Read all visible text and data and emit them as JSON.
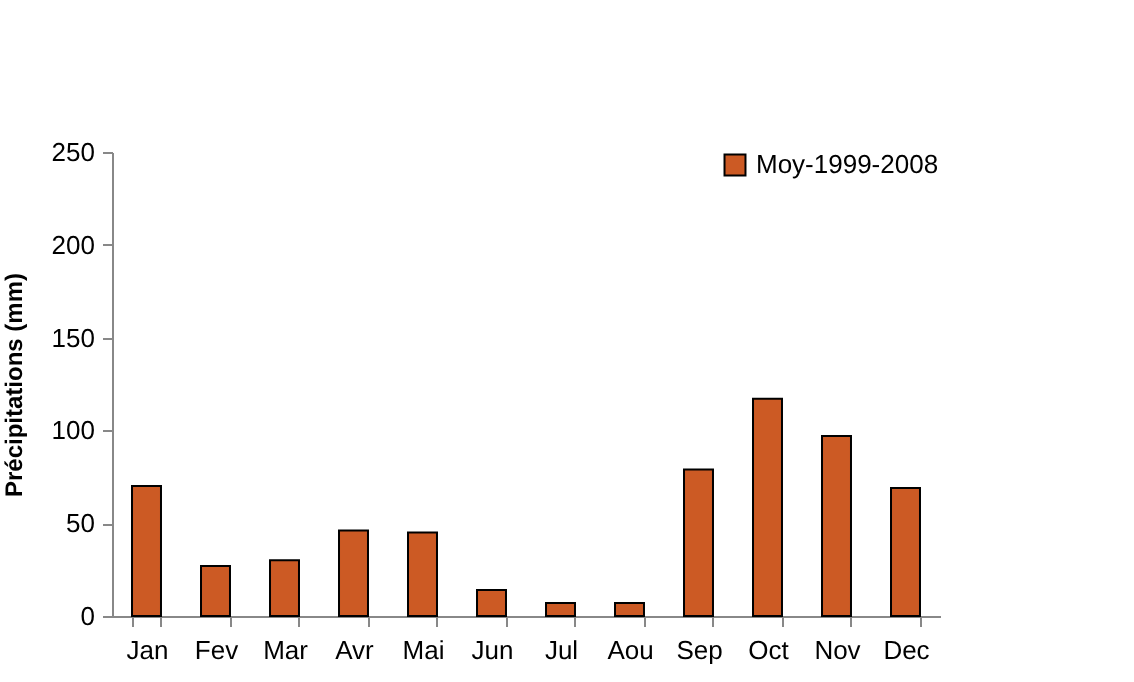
{
  "chart_data": {
    "type": "bar",
    "ylabel": "Précipitations (mm)",
    "categories": [
      "Jan",
      "Fev",
      "Mar",
      "Avr",
      "Mai",
      "Jun",
      "Jul",
      "Aou",
      "Sep",
      "Oct",
      "Nov",
      "Dec"
    ],
    "series": [
      {
        "name": "Moy-1999-2008",
        "color": "#cc5a24",
        "values": [
          70,
          27,
          30,
          46,
          45,
          14,
          7,
          7,
          79,
          117,
          97,
          69
        ]
      }
    ],
    "ylim": [
      0,
      250
    ],
    "yticks": [
      0,
      50,
      100,
      150,
      200,
      250
    ],
    "grid": false,
    "legend": "top right"
  }
}
